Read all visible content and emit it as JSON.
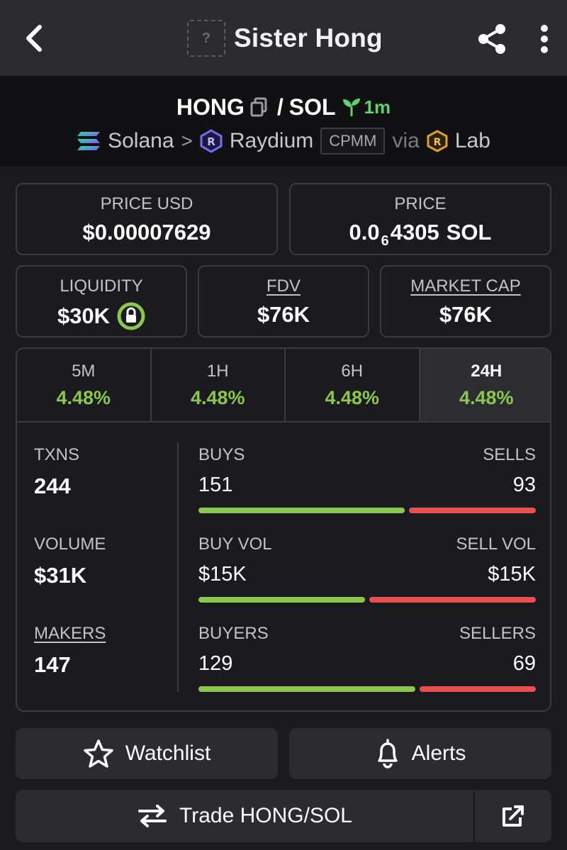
{
  "header": {
    "token_name": "Sister Hong",
    "logo_placeholder": "?"
  },
  "pair": {
    "base": "HONG",
    "separator": "/",
    "quote": "SOL",
    "age": "1m",
    "chain": "Solana",
    "chevron": ">",
    "dex": "Raydium",
    "dex_type": "CPMM",
    "via": "via",
    "launchpad": "Lab"
  },
  "stats": {
    "price_usd": {
      "label": "PRICE USD",
      "value": "$0.00007629"
    },
    "price": {
      "label": "PRICE",
      "prefix": "0.0",
      "subscript": "6",
      "digits": "4305",
      "unit": "SOL"
    },
    "liquidity": {
      "label": "LIQUIDITY",
      "value": "$30K"
    },
    "fdv": {
      "label": "FDV",
      "value": "$76K"
    },
    "market_cap": {
      "label": "MARKET CAP",
      "value": "$76K"
    }
  },
  "timeframes": [
    {
      "label": "5M",
      "change": "4.48%",
      "active": false
    },
    {
      "label": "1H",
      "change": "4.48%",
      "active": false
    },
    {
      "label": "6H",
      "change": "4.48%",
      "active": false
    },
    {
      "label": "24H",
      "change": "4.48%",
      "active": true
    }
  ],
  "txn_stats": {
    "txns": {
      "label": "TXNS",
      "value": "244"
    },
    "volume": {
      "label": "VOLUME",
      "value": "$31K"
    },
    "makers": {
      "label": "MAKERS",
      "value": "147"
    },
    "buys_sells": {
      "left_label": "BUYS",
      "right_label": "SELLS",
      "left_value": "151",
      "right_value": "93",
      "buy_fraction": 0.619
    },
    "volumes": {
      "left_label": "BUY VOL",
      "right_label": "SELL VOL",
      "left_value": "$15K",
      "right_value": "$15K",
      "buy_fraction": 0.5
    },
    "buyers_sellers": {
      "left_label": "BUYERS",
      "right_label": "SELLERS",
      "left_value": "129",
      "right_value": "69",
      "buy_fraction": 0.652
    }
  },
  "actions": {
    "watchlist": "Watchlist",
    "alerts": "Alerts",
    "trade": "Trade HONG/SOL"
  },
  "colors": {
    "buy": "#8bc64f",
    "sell": "#ea4f4f",
    "age": "#5fd16e"
  },
  "icons": {
    "back": "chevron-left-icon",
    "share": "share-icon",
    "more": "more-vertical-icon",
    "copy": "copy-icon",
    "seedling": "seedling-icon",
    "lock": "lock-icon",
    "star": "star-icon",
    "bell": "bell-icon",
    "swap": "swap-arrows-icon",
    "external": "external-link-icon"
  }
}
